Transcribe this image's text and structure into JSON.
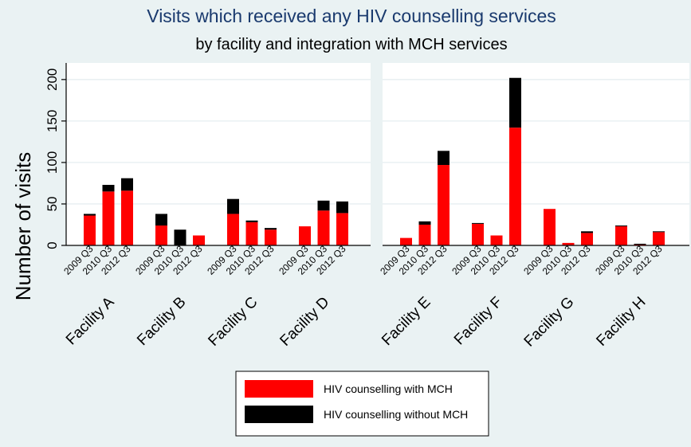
{
  "chart_data": {
    "type": "bar",
    "stacked": true,
    "title": "Visits which received any HIV counselling services",
    "subtitle": "by facility and integration with MCH services",
    "ylabel": "Number of visits",
    "ylim": [
      0,
      220
    ],
    "yticks": [
      0,
      50,
      100,
      150,
      200
    ],
    "grid": true,
    "legend_position": "bottom-center",
    "colors": {
      "with_mch": "#ff0000",
      "without_mch": "#000000",
      "title": "#1a3a6e",
      "background": "#eaf2f3"
    },
    "series": [
      {
        "key": "with_mch",
        "name": "HIV counselling with MCH"
      },
      {
        "key": "without_mch",
        "name": "HIV counselling without MCH"
      }
    ],
    "panels": [
      {
        "facilities": [
          {
            "name": "Facility A",
            "bars": [
              {
                "period": "2009 Q3",
                "with_mch": 36,
                "without_mch": 2
              },
              {
                "period": "2010 Q3",
                "with_mch": 65,
                "without_mch": 8
              },
              {
                "period": "2012 Q3",
                "with_mch": 66,
                "without_mch": 15
              }
            ]
          },
          {
            "name": "Facility B",
            "bars": [
              {
                "period": "2009 Q3",
                "with_mch": 24,
                "without_mch": 14
              },
              {
                "period": "2010 Q3",
                "with_mch": 0,
                "without_mch": 19
              },
              {
                "period": "2012 Q3",
                "with_mch": 12,
                "without_mch": 0
              }
            ]
          },
          {
            "name": "Facility C",
            "bars": [
              {
                "period": "2009 Q3",
                "with_mch": 38,
                "without_mch": 18
              },
              {
                "period": "2010 Q3",
                "with_mch": 28,
                "without_mch": 2
              },
              {
                "period": "2012 Q3",
                "with_mch": 19,
                "without_mch": 2
              }
            ]
          },
          {
            "name": "Facility D",
            "bars": [
              {
                "period": "2009 Q3",
                "with_mch": 23,
                "without_mch": 0
              },
              {
                "period": "2010 Q3",
                "with_mch": 42,
                "without_mch": 12
              },
              {
                "period": "2012 Q3",
                "with_mch": 39,
                "without_mch": 14
              }
            ]
          }
        ]
      },
      {
        "facilities": [
          {
            "name": "Facility E",
            "bars": [
              {
                "period": "2009 Q3",
                "with_mch": 9,
                "without_mch": 0
              },
              {
                "period": "2010 Q3",
                "with_mch": 25,
                "without_mch": 4
              },
              {
                "period": "2012 Q3",
                "with_mch": 97,
                "without_mch": 17
              }
            ]
          },
          {
            "name": "Facility F",
            "bars": [
              {
                "period": "2009 Q3",
                "with_mch": 26,
                "without_mch": 1
              },
              {
                "period": "2010 Q3",
                "with_mch": 12,
                "without_mch": 0
              },
              {
                "period": "2012 Q3",
                "with_mch": 142,
                "without_mch": 60
              }
            ]
          },
          {
            "name": "Facility G",
            "bars": [
              {
                "period": "2009 Q3",
                "with_mch": 44,
                "without_mch": 0
              },
              {
                "period": "2010 Q3",
                "with_mch": 3,
                "without_mch": 0
              },
              {
                "period": "2012 Q3",
                "with_mch": 15,
                "without_mch": 2
              }
            ]
          },
          {
            "name": "Facility H",
            "bars": [
              {
                "period": "2009 Q3",
                "with_mch": 23,
                "without_mch": 1
              },
              {
                "period": "2010 Q3",
                "with_mch": 1,
                "without_mch": 1
              },
              {
                "period": "2012 Q3",
                "with_mch": 16,
                "without_mch": 1
              }
            ]
          }
        ]
      }
    ]
  }
}
